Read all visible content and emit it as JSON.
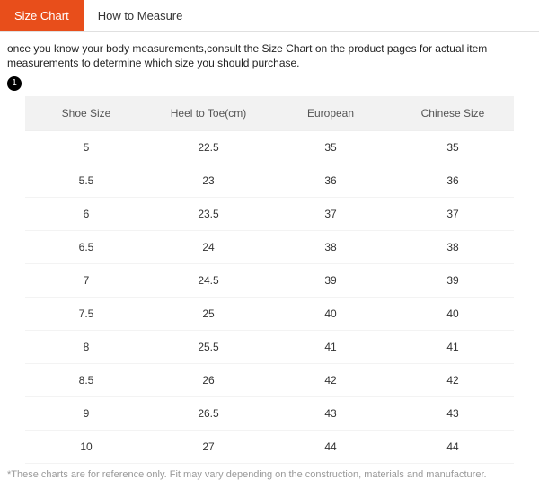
{
  "tabs": {
    "active": "Size Chart",
    "inactive": "How to Measure"
  },
  "intro": "once you know your body measurements,consult the Size Chart on the product pages for actual item measurements to determine which size you should purchase.",
  "badge": "1",
  "table": {
    "columns": [
      "Shoe Size",
      "Heel to Toe(cm)",
      "European",
      "Chinese Size"
    ],
    "rows": [
      [
        "5",
        "22.5",
        "35",
        "35"
      ],
      [
        "5.5",
        "23",
        "36",
        "36"
      ],
      [
        "6",
        "23.5",
        "37",
        "37"
      ],
      [
        "6.5",
        "24",
        "38",
        "38"
      ],
      [
        "7",
        "24.5",
        "39",
        "39"
      ],
      [
        "7.5",
        "25",
        "40",
        "40"
      ],
      [
        "8",
        "25.5",
        "41",
        "41"
      ],
      [
        "8.5",
        "26",
        "42",
        "42"
      ],
      [
        "9",
        "26.5",
        "43",
        "43"
      ],
      [
        "10",
        "27",
        "44",
        "44"
      ]
    ]
  },
  "footnote": "*These charts are for reference only. Fit may vary depending on the construction, materials and manufacturer.",
  "colors": {
    "accent": "#e84e1b",
    "header_bg": "#f2f2f2",
    "row_border": "#f3f3f3",
    "footnote_text": "#999999"
  }
}
